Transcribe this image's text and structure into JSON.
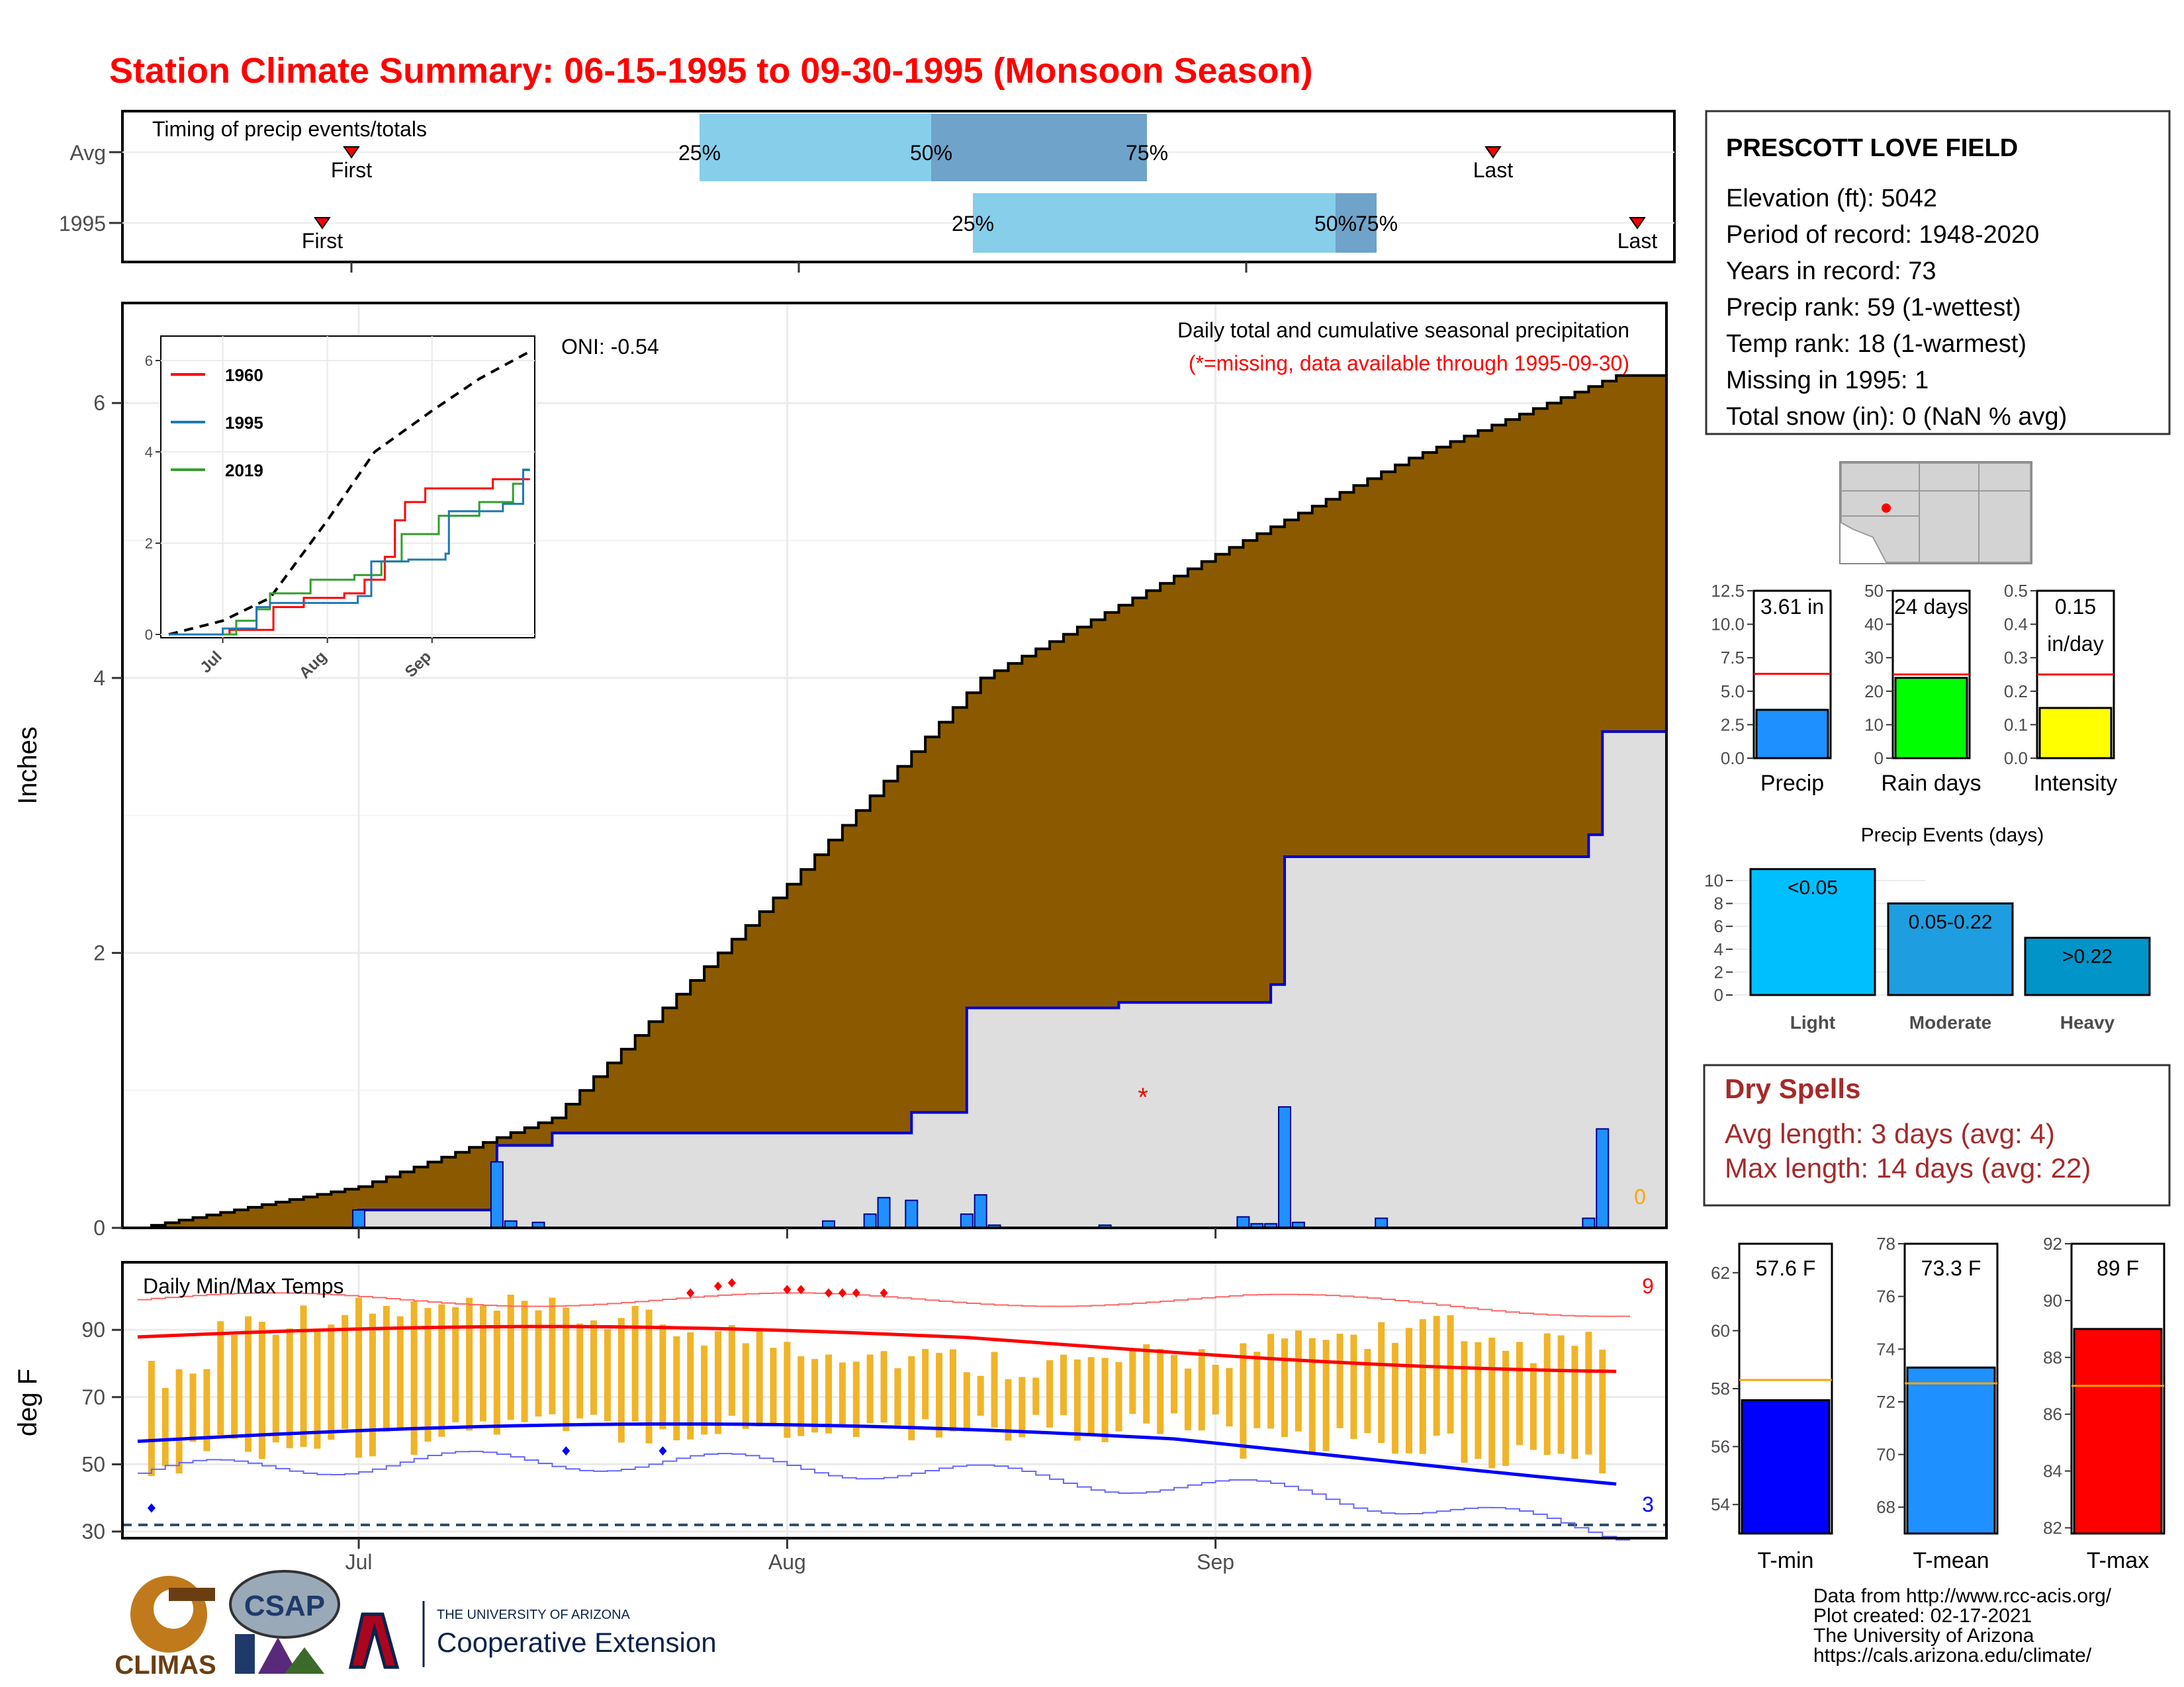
{
  "title": "Station Climate Summary: 06-15-1995 to 09-30-1995 (Monsoon Season)",
  "colors": {
    "title": "#ff0000",
    "cumulative_avg": "#8b5a00",
    "cumulative_year": "#dedede",
    "year_line": "#0000cd",
    "daily_bar": "#1e90ff",
    "temp_bar": "#f0b429",
    "avg_max": "#ff0000",
    "avg_min": "#0000ff",
    "dry_spell_text": "#a52a2a",
    "quartile_light": "#87ceeb",
    "quartile_dark": "#6fa3c9",
    "precip_bar": "#1e90ff",
    "raindays_bar": "#00ff00",
    "intensity_bar": "#ffff00",
    "light_bar": "#00bfff",
    "moderate_bar": "#1e9ee0",
    "heavy_bar": "#0094c8",
    "tmin_bar": "#0000ff",
    "tmean_bar": "#1e90ff",
    "tmax_bar": "#ff0000"
  },
  "timing": {
    "label": "Timing of precip events/totals",
    "rows": [
      "Avg",
      "1995"
    ],
    "avg": {
      "first": "First",
      "last": "Last",
      "p25": "25%",
      "p50": "50%",
      "p75": "75%"
    },
    "year": {
      "first": "First",
      "last": "Last",
      "p25": "25%",
      "p50": "50%",
      "p75": "75%"
    }
  },
  "main": {
    "ylabel": "Inches",
    "oni": "ONI: -0.54",
    "legend1": "Daily total and cumulative seasonal precipitation",
    "legend2": "(*=missing, data available through 1995-09-30)",
    "missing_marker": "*",
    "zero_label": "0",
    "yticks": [
      "0",
      "2",
      "4",
      "6"
    ]
  },
  "inset": {
    "legend": [
      {
        "name": "1960",
        "color": "#ff0000"
      },
      {
        "name": "1995",
        "color": "#1f78b4"
      },
      {
        "name": "2019",
        "color": "#33a02c"
      }
    ],
    "yticks": [
      "0",
      "2",
      "4",
      "6"
    ],
    "xticks": [
      "Jul",
      "Aug",
      "Sep"
    ]
  },
  "temps": {
    "label": "Daily Min/Max Temps",
    "ylabel": "deg F",
    "yticks": [
      "30",
      "50",
      "70",
      "90"
    ],
    "count_hot": "9",
    "count_cold": "3",
    "xticks": [
      "Jul",
      "Aug",
      "Sep"
    ]
  },
  "station": {
    "name": "PRESCOTT LOVE FIELD",
    "lines": [
      "Elevation (ft): 5042",
      "Period of record: 1948-2020",
      "Years in record: 73",
      "Precip rank: 59 (1-wettest)",
      "Temp rank: 18 (1-warmest)",
      "Missing in 1995: 1",
      "Total snow (in): 0 (NaN % avg)"
    ]
  },
  "mini_bars": [
    {
      "label": "Precip",
      "value_text": "3.61 in",
      "value": 3.61,
      "avg": 6.3,
      "ymax": 12.5,
      "yticks": [
        "0.0",
        "2.5",
        "5.0",
        "7.5",
        "10.0",
        "12.5"
      ]
    },
    {
      "label": "Rain days",
      "value_text": "24 days",
      "value": 24,
      "avg": 25,
      "ymax": 50,
      "yticks": [
        "0",
        "10",
        "20",
        "30",
        "40",
        "50"
      ]
    },
    {
      "label": "Intensity",
      "value_text": "0.15",
      "value_text2": "in/day",
      "value": 0.15,
      "avg": 0.25,
      "ymax": 0.5,
      "yticks": [
        "0.0",
        "0.1",
        "0.2",
        "0.3",
        "0.4",
        "0.5"
      ]
    }
  ],
  "events": {
    "title": "Precip Events (days)",
    "yticks": [
      "0",
      "2",
      "4",
      "6",
      "8",
      "10"
    ],
    "bars": [
      {
        "label": "Light",
        "range": "<0.05",
        "value": 11
      },
      {
        "label": "Moderate",
        "range": "0.05-0.22",
        "value": 8
      },
      {
        "label": "Heavy",
        "range": ">0.22",
        "value": 5
      }
    ]
  },
  "dry_spells": {
    "title": "Dry Spells",
    "avg_length": "Avg length: 3 days (avg: 4)",
    "max_length": "Max length: 14 days (avg: 22)"
  },
  "temp_bars": [
    {
      "label": "T-min",
      "value_text": "57.6 F",
      "value": 57.6,
      "avg": 58.3,
      "ymin": 53,
      "ymax": 63,
      "yticks": [
        "54",
        "56",
        "58",
        "60",
        "62"
      ]
    },
    {
      "label": "T-mean",
      "value_text": "73.3 F",
      "value": 73.3,
      "avg": 72.7,
      "ymin": 67,
      "ymax": 78,
      "yticks": [
        "68",
        "70",
        "72",
        "74",
        "76",
        "78"
      ]
    },
    {
      "label": "T-max",
      "value_text": "89 F",
      "value": 89,
      "avg": 87,
      "ymin": 81.8,
      "ymax": 92,
      "yticks": [
        "82",
        "84",
        "86",
        "88",
        "90",
        "92"
      ]
    }
  ],
  "footer": {
    "lines": [
      "Data from http://www.rcc-acis.org/",
      "Plot created: 02-17-2021",
      "The University of Arizona",
      "https://cals.arizona.edu/climate/"
    ]
  },
  "logos": {
    "climas": "CLIMAS",
    "csap": "CSAP",
    "ua_top": "THE UNIVERSITY OF ARIZONA",
    "ua_bottom": "Cooperative Extension"
  },
  "chart_data": {
    "type": "area",
    "x_start": "1995-06-15",
    "x_end": "1995-09-30",
    "xticks": [
      "Jul",
      "Aug",
      "Sep"
    ],
    "ylim": [
      0,
      6.6
    ],
    "series": [
      {
        "name": "Avg",
        "x": [
          "06-15",
          "07-01",
          "07-15",
          "08-01",
          "08-15",
          "09-01",
          "09-15",
          "09-30"
        ],
        "values": [
          0.0,
          0.3,
          0.8,
          2.5,
          4.0,
          4.9,
          5.6,
          6.2
        ]
      },
      {
        "name": "1995",
        "x": [
          "06-15",
          "07-01",
          "07-10",
          "07-11",
          "07-15",
          "08-04",
          "08-10",
          "08-14",
          "08-25",
          "09-05",
          "09-06",
          "09-28",
          "09-29"
        ],
        "values": [
          0.0,
          0.13,
          0.13,
          0.6,
          0.69,
          0.69,
          0.84,
          1.6,
          1.64,
          1.77,
          2.7,
          2.86,
          3.61
        ]
      },
      {
        "name": "Daily",
        "x": [
          "07-01",
          "07-11",
          "07-12",
          "07-14",
          "08-04",
          "08-07",
          "08-08",
          "08-10",
          "08-14",
          "08-15",
          "08-16",
          "08-24",
          "09-03",
          "09-04",
          "09-05",
          "09-06",
          "09-07",
          "09-13",
          "09-28",
          "09-29"
        ],
        "values": [
          0.13,
          0.48,
          0.05,
          0.04,
          0.05,
          0.1,
          0.22,
          0.2,
          0.1,
          0.24,
          0.02,
          0.02,
          0.08,
          0.03,
          0.03,
          0.88,
          0.04,
          0.07,
          0.07,
          0.72
        ]
      }
    ]
  }
}
